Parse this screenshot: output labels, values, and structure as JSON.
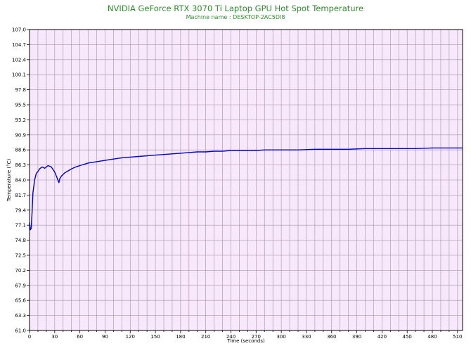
{
  "chart_data": {
    "type": "line",
    "title": "NVIDIA GeForce RTX 3070 Ti Laptop GPU Hot Spot Temperature",
    "subtitle": "Machine name : DESKTOP-2AC5DI8",
    "xlabel": "Time (seconds)",
    "ylabel": "Temperature (°C)",
    "xlim": [
      0,
      516
    ],
    "ylim": [
      61.0,
      107.0
    ],
    "x_ticks": [
      "0",
      "30",
      "60",
      "90",
      "120",
      "150",
      "180",
      "210",
      "240",
      "270",
      "300",
      "330",
      "360",
      "390",
      "420",
      "450",
      "480",
      "510"
    ],
    "y_ticks": [
      "61.0",
      "63.3",
      "65.6",
      "67.9",
      "70.2",
      "72.5",
      "74.8",
      "77.1",
      "79.4",
      "81.7",
      "84.0",
      "86.3",
      "88.6",
      "90.9",
      "93.2",
      "95.5",
      "97.8",
      "100.1",
      "102.4",
      "104.7",
      "107.0"
    ],
    "grid": true,
    "legend": "none",
    "colors": {
      "plot_background": "#f7e8fb",
      "grid": "#a890a8",
      "line": "#0000cc",
      "title": "#2e8b2e"
    },
    "series": [
      {
        "x": [
          0,
          1,
          2,
          3,
          4,
          5,
          6,
          7,
          8,
          10,
          12,
          15,
          18,
          22,
          26,
          30,
          32,
          34,
          35,
          36,
          38,
          42,
          46,
          50,
          55,
          60,
          65,
          70,
          75,
          80,
          90,
          100,
          110,
          120,
          130,
          140,
          150,
          160,
          170,
          180,
          190,
          200,
          210,
          220,
          230,
          240,
          250,
          260,
          270,
          280,
          290,
          300,
          320,
          340,
          360,
          380,
          400,
          420,
          440,
          460,
          480,
          500,
          510,
          516
        ],
        "y": [
          77.5,
          76.4,
          76.6,
          79.0,
          82.0,
          83.0,
          84.0,
          84.5,
          85.0,
          85.3,
          85.7,
          86.0,
          85.8,
          86.2,
          86.0,
          85.2,
          84.6,
          83.9,
          83.6,
          84.2,
          84.6,
          85.1,
          85.4,
          85.7,
          86.0,
          86.2,
          86.4,
          86.6,
          86.7,
          86.8,
          87.0,
          87.2,
          87.4,
          87.5,
          87.6,
          87.7,
          87.8,
          87.9,
          88.0,
          88.1,
          88.2,
          88.3,
          88.3,
          88.4,
          88.4,
          88.5,
          88.5,
          88.5,
          88.5,
          88.6,
          88.6,
          88.6,
          88.6,
          88.7,
          88.7,
          88.7,
          88.8,
          88.8,
          88.8,
          88.8,
          88.9,
          88.9,
          88.9,
          88.9
        ]
      }
    ]
  }
}
